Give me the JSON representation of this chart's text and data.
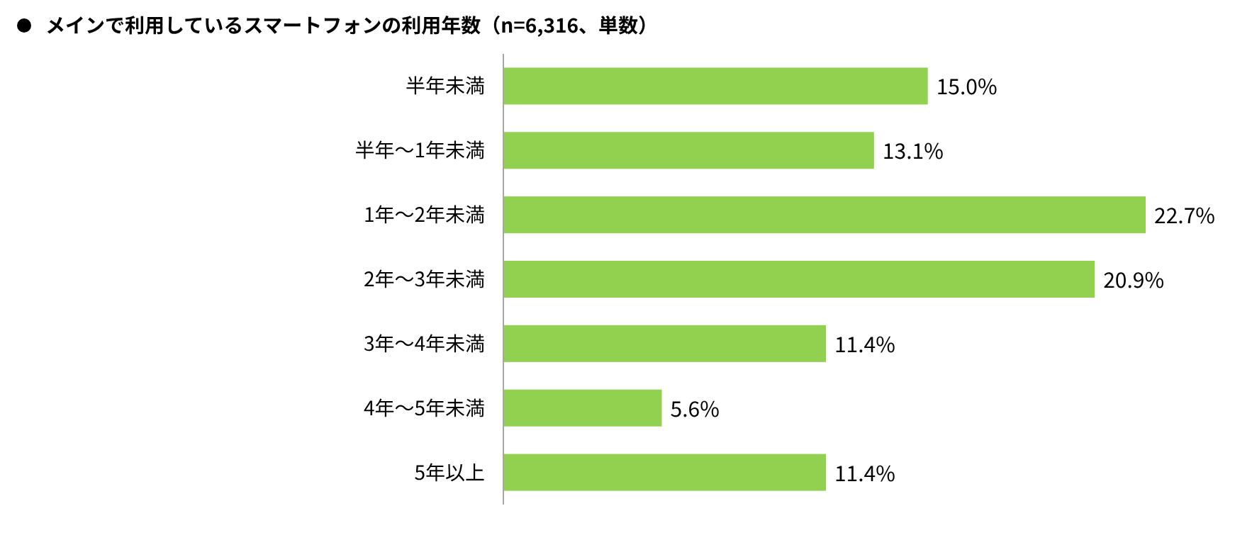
{
  "chart_data": {
    "type": "bar",
    "orientation": "horizontal",
    "title": "メインで利用しているスマートフォンの利用年数（n=6,316、単数）",
    "categories": [
      "半年未満",
      "半年～1年未満",
      "1年～2年未満",
      "2年～3年未満",
      "3年～4年未満",
      "4年～5年未満",
      "5年以上"
    ],
    "values": [
      15.0,
      13.1,
      22.7,
      20.9,
      11.4,
      5.6,
      11.4
    ],
    "value_labels": [
      "15.0%",
      "13.1%",
      "22.7%",
      "20.9%",
      "11.4%",
      "5.6%",
      "11.4%"
    ],
    "color": "#92d050"
  }
}
